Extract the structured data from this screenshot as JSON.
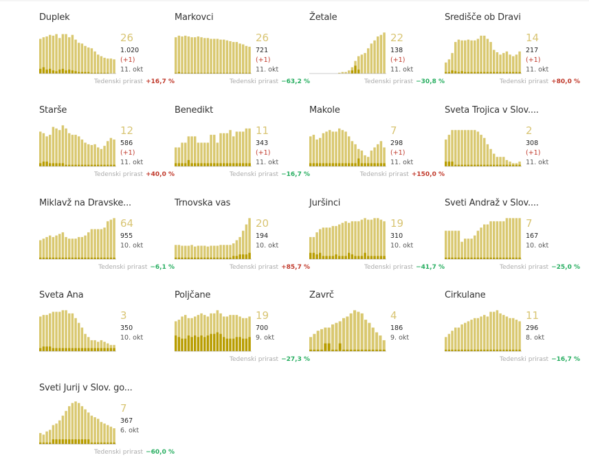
{
  "colors": {
    "bar_light": "#d9c870",
    "bar_dark": "#b89d00",
    "big_number": "#d8c472",
    "increase": "#c0392b",
    "decrease": "#27ae60",
    "baseline": "#999999"
  },
  "weekly_label": "Tedenski prirast",
  "chart_data": [
    {
      "type": "bar",
      "title": "Duplek",
      "big": "26",
      "total": "1.020",
      "delta": "(+1)",
      "date": "11. okt",
      "weekly": "+16,7 %",
      "weekly_sign": "pos",
      "values": [
        44,
        46,
        47,
        49,
        48,
        50,
        45,
        50,
        50,
        46,
        49,
        43,
        39,
        38,
        35,
        33,
        32,
        28,
        24,
        22,
        20,
        19,
        19,
        18
      ],
      "dark": [
        6,
        8,
        5,
        6,
        4,
        3,
        5,
        6,
        4,
        5,
        4,
        3,
        2,
        2,
        2,
        2,
        1,
        1,
        1,
        1,
        1,
        1,
        0,
        0
      ]
    },
    {
      "type": "bar",
      "title": "Markovci",
      "big": "26",
      "total": "721",
      "delta": "(+1)",
      "date": "11. okt",
      "weekly": "−63,2 %",
      "weekly_sign": "neg",
      "values": [
        46,
        48,
        47,
        48,
        47,
        46,
        46,
        47,
        46,
        45,
        45,
        44,
        44,
        44,
        43,
        43,
        42,
        41,
        40,
        40,
        38,
        37,
        35,
        34
      ],
      "dark": [
        1,
        2,
        1,
        1,
        1,
        1,
        1,
        1,
        1,
        1,
        1,
        1,
        1,
        1,
        1,
        1,
        1,
        1,
        1,
        1,
        1,
        1,
        1,
        1
      ]
    },
    {
      "type": "bar",
      "title": "Žetale",
      "big": "22",
      "total": "138",
      "delta": "(+1)",
      "date": "11. okt",
      "weekly": "−30,8 %",
      "weekly_sign": "neg",
      "values": [
        0,
        0,
        0,
        0,
        0,
        0,
        0,
        0,
        0,
        1,
        2,
        2,
        4,
        8,
        16,
        22,
        24,
        26,
        32,
        38,
        42,
        47,
        49,
        52
      ],
      "dark": [
        0,
        0,
        0,
        0,
        0,
        0,
        0,
        0,
        0,
        0,
        0,
        0,
        0,
        4,
        10,
        5,
        0,
        0,
        0,
        0,
        0,
        0,
        0,
        0
      ]
    },
    {
      "type": "bar",
      "title": "Središče ob Dravi",
      "big": "14",
      "total": "217",
      "delta": "(+1)",
      "date": "11. okt",
      "weekly": "+80,0 %",
      "weekly_sign": "pos",
      "values": [
        14,
        18,
        26,
        40,
        43,
        42,
        42,
        43,
        42,
        42,
        44,
        48,
        48,
        44,
        40,
        30,
        27,
        24,
        26,
        28,
        24,
        22,
        24,
        28
      ],
      "dark": [
        2,
        2,
        4,
        3,
        2,
        3,
        2,
        2,
        2,
        2,
        2,
        2,
        2,
        2,
        2,
        2,
        2,
        2,
        2,
        2,
        2,
        2,
        2,
        2
      ]
    },
    {
      "type": "bar",
      "title": "Starše",
      "big": "12",
      "total": "586",
      "delta": "(+1)",
      "date": "11. okt",
      "weekly": "+40,0 %",
      "weekly_sign": "pos",
      "values": [
        44,
        42,
        38,
        40,
        50,
        48,
        46,
        52,
        48,
        42,
        40,
        40,
        38,
        34,
        30,
        28,
        27,
        28,
        24,
        22,
        26,
        32,
        36,
        34
      ],
      "dark": [
        4,
        6,
        6,
        4,
        4,
        4,
        4,
        4,
        2,
        2,
        2,
        2,
        2,
        2,
        2,
        2,
        2,
        2,
        2,
        2,
        2,
        2,
        2,
        2
      ]
    },
    {
      "type": "bar",
      "title": "Benedikt",
      "big": "11",
      "total": "343",
      "delta": "(+1)",
      "date": "11. okt",
      "weekly": "−16,7 %",
      "weekly_sign": "neg",
      "values": [
        24,
        24,
        30,
        30,
        38,
        38,
        38,
        30,
        30,
        30,
        30,
        40,
        40,
        30,
        42,
        42,
        42,
        46,
        38,
        44,
        44,
        44,
        48,
        48
      ],
      "dark": [
        4,
        4,
        4,
        4,
        8,
        4,
        4,
        4,
        4,
        4,
        4,
        4,
        4,
        4,
        4,
        4,
        4,
        4,
        4,
        4,
        4,
        4,
        4,
        4
      ]
    },
    {
      "type": "bar",
      "title": "Makole",
      "big": "7",
      "total": "298",
      "delta": "(+1)",
      "date": "11. okt",
      "weekly": "+150,0 %",
      "weekly_sign": "pos",
      "values": [
        38,
        40,
        34,
        36,
        42,
        44,
        46,
        44,
        44,
        48,
        46,
        44,
        38,
        32,
        28,
        22,
        20,
        14,
        12,
        20,
        24,
        28,
        32,
        24
      ],
      "dark": [
        4,
        4,
        4,
        4,
        4,
        4,
        4,
        4,
        4,
        4,
        4,
        4,
        4,
        4,
        4,
        10,
        4,
        4,
        4,
        4,
        4,
        4,
        4,
        4
      ]
    },
    {
      "type": "bar",
      "title": "Sveta Trojica v Slov....",
      "big": "2",
      "total": "308",
      "delta": "(+1)",
      "date": "11. okt",
      "weekly": "",
      "weekly_sign": "",
      "values": [
        34,
        40,
        46,
        46,
        46,
        46,
        46,
        46,
        46,
        46,
        44,
        40,
        36,
        28,
        22,
        16,
        12,
        12,
        12,
        8,
        6,
        4,
        4,
        6
      ],
      "dark": [
        6,
        6,
        6,
        2,
        2,
        2,
        2,
        2,
        2,
        2,
        2,
        2,
        2,
        2,
        2,
        2,
        2,
        2,
        2,
        2,
        2,
        2,
        2,
        2
      ]
    },
    {
      "type": "bar",
      "title": "Miklavž na Dravske...",
      "big": "64",
      "total": "955",
      "delta": "",
      "date": "10. okt",
      "weekly": "−6,1 %",
      "weekly_sign": "neg",
      "values": [
        24,
        26,
        28,
        30,
        28,
        30,
        32,
        34,
        28,
        26,
        26,
        26,
        28,
        28,
        30,
        34,
        38,
        38,
        38,
        38,
        40,
        48,
        50,
        52
      ],
      "dark": [
        2,
        2,
        2,
        2,
        2,
        2,
        2,
        2,
        2,
        2,
        2,
        2,
        2,
        2,
        2,
        2,
        2,
        2,
        2,
        2,
        2,
        2,
        2,
        2
      ]
    },
    {
      "type": "bar",
      "title": "Trnovska vas",
      "big": "20",
      "total": "194",
      "delta": "",
      "date": "10. okt",
      "weekly": "+85,7 %",
      "weekly_sign": "pos",
      "values": [
        18,
        18,
        17,
        17,
        17,
        18,
        16,
        17,
        17,
        17,
        16,
        17,
        17,
        17,
        18,
        18,
        18,
        18,
        20,
        24,
        28,
        36,
        44,
        52
      ],
      "dark": [
        2,
        2,
        2,
        2,
        2,
        2,
        2,
        2,
        2,
        2,
        2,
        2,
        2,
        2,
        2,
        2,
        2,
        2,
        4,
        4,
        6,
        6,
        6,
        8
      ]
    },
    {
      "type": "bar",
      "title": "Juršinci",
      "big": "19",
      "total": "310",
      "delta": "",
      "date": "10. okt",
      "weekly": "−41,7 %",
      "weekly_sign": "neg",
      "values": [
        28,
        28,
        34,
        38,
        40,
        40,
        40,
        42,
        42,
        44,
        46,
        48,
        46,
        48,
        48,
        48,
        50,
        52,
        50,
        50,
        52,
        52,
        50,
        48
      ],
      "dark": [
        8,
        8,
        6,
        8,
        4,
        4,
        4,
        4,
        6,
        4,
        4,
        4,
        8,
        6,
        4,
        4,
        4,
        8,
        4,
        4,
        4,
        4,
        4,
        4
      ]
    },
    {
      "type": "bar",
      "title": "Sveti Andraž v Slov....",
      "big": "7",
      "total": "167",
      "delta": "",
      "date": "10. okt",
      "weekly": "−25,0 %",
      "weekly_sign": "neg",
      "values": [
        36,
        36,
        36,
        36,
        36,
        22,
        26,
        26,
        26,
        30,
        36,
        40,
        44,
        44,
        48,
        48,
        48,
        48,
        48,
        52,
        52,
        52,
        52,
        52
      ],
      "dark": [
        2,
        2,
        2,
        2,
        2,
        2,
        2,
        2,
        2,
        2,
        2,
        2,
        2,
        2,
        2,
        2,
        2,
        2,
        2,
        2,
        2,
        2,
        2,
        2
      ]
    },
    {
      "type": "bar",
      "title": "Sveta Ana",
      "big": "3",
      "total": "350",
      "delta": "",
      "date": "10. okt",
      "weekly": "",
      "weekly_sign": "",
      "values": [
        44,
        46,
        46,
        48,
        50,
        50,
        50,
        52,
        52,
        48,
        48,
        42,
        36,
        30,
        22,
        18,
        14,
        14,
        12,
        14,
        12,
        10,
        8,
        8
      ],
      "dark": [
        4,
        6,
        6,
        6,
        4,
        4,
        4,
        4,
        4,
        4,
        4,
        4,
        4,
        4,
        4,
        4,
        4,
        4,
        4,
        4,
        4,
        4,
        4,
        4
      ]
    },
    {
      "type": "bar",
      "title": "Poljčane",
      "big": "19",
      "total": "700",
      "delta": "",
      "date": "9. okt",
      "weekly": "−27,3 %",
      "weekly_sign": "neg",
      "values": [
        38,
        40,
        44,
        46,
        42,
        42,
        44,
        46,
        48,
        46,
        44,
        48,
        48,
        52,
        48,
        44,
        44,
        46,
        46,
        46,
        44,
        42,
        42,
        44
      ],
      "dark": [
        20,
        18,
        16,
        16,
        20,
        18,
        20,
        18,
        20,
        18,
        20,
        22,
        22,
        24,
        22,
        18,
        16,
        16,
        16,
        18,
        18,
        16,
        16,
        18
      ]
    },
    {
      "type": "bar",
      "title": "Zavrč",
      "big": "4",
      "total": "186",
      "delta": "",
      "date": "9. okt",
      "weekly": "",
      "weekly_sign": "",
      "values": [
        18,
        22,
        26,
        28,
        30,
        30,
        34,
        36,
        38,
        42,
        44,
        48,
        52,
        50,
        48,
        40,
        36,
        30,
        24,
        20,
        14
      ],
      "dark": [
        2,
        2,
        2,
        2,
        10,
        10,
        2,
        2,
        10,
        2,
        2,
        2,
        2,
        2,
        2,
        2,
        2,
        2,
        2,
        2,
        2
      ]
    },
    {
      "type": "bar",
      "title": "Cirkulane",
      "big": "11",
      "total": "296",
      "delta": "",
      "date": "8. okt",
      "weekly": "−16,7 %",
      "weekly_sign": "neg",
      "values": [
        18,
        22,
        26,
        30,
        30,
        34,
        36,
        38,
        40,
        42,
        42,
        44,
        46,
        44,
        50,
        50,
        52,
        48,
        46,
        44,
        42,
        42,
        40,
        38
      ],
      "dark": [
        2,
        2,
        2,
        2,
        2,
        2,
        2,
        2,
        2,
        2,
        2,
        2,
        2,
        2,
        2,
        2,
        2,
        2,
        2,
        2,
        2,
        2,
        2,
        2
      ]
    },
    {
      "type": "bar",
      "title": "Sveti Jurij v Slov. go...",
      "big": "7",
      "total": "367",
      "delta": "",
      "date": "6. okt",
      "weekly": "−60,0 %",
      "weekly_sign": "neg",
      "values": [
        14,
        12,
        16,
        18,
        24,
        26,
        30,
        36,
        42,
        48,
        52,
        54,
        52,
        48,
        44,
        40,
        36,
        34,
        32,
        28,
        26,
        24,
        22,
        20
      ],
      "dark": [
        2,
        2,
        2,
        2,
        6,
        6,
        6,
        6,
        6,
        6,
        6,
        6,
        6,
        6,
        6,
        6,
        2,
        2,
        2,
        2,
        2,
        2,
        2,
        2
      ]
    }
  ]
}
